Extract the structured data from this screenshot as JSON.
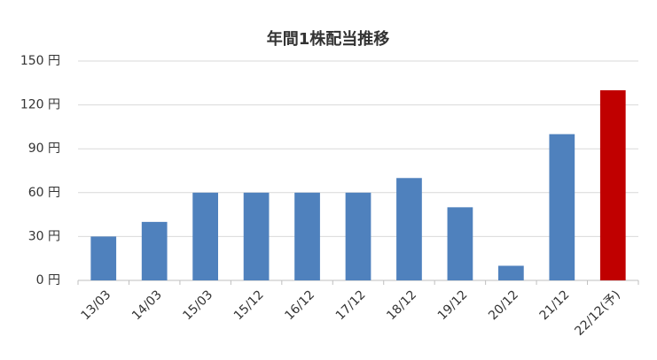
{
  "chart_data": {
    "type": "bar",
    "title": "年間1株配当推移",
    "categories": [
      "13/03",
      "14/03",
      "15/03",
      "15/12",
      "16/12",
      "17/12",
      "18/12",
      "19/12",
      "20/12",
      "21/12",
      "22/12(予)"
    ],
    "values": [
      30,
      40,
      60,
      60,
      60,
      60,
      70,
      50,
      10,
      100,
      130
    ],
    "colors": [
      "#4f81bd",
      "#4f81bd",
      "#4f81bd",
      "#4f81bd",
      "#4f81bd",
      "#4f81bd",
      "#4f81bd",
      "#4f81bd",
      "#4f81bd",
      "#4f81bd",
      "#c00000"
    ],
    "ylim": [
      0,
      150
    ],
    "yticks": [
      {
        "value": 0,
        "label": "0 円"
      },
      {
        "value": 30,
        "label": "30 円"
      },
      {
        "value": 60,
        "label": "60 円"
      },
      {
        "value": 90,
        "label": "90 円"
      },
      {
        "value": 120,
        "label": "120 円"
      },
      {
        "value": 150,
        "label": "150 円"
      }
    ],
    "grid": true
  }
}
